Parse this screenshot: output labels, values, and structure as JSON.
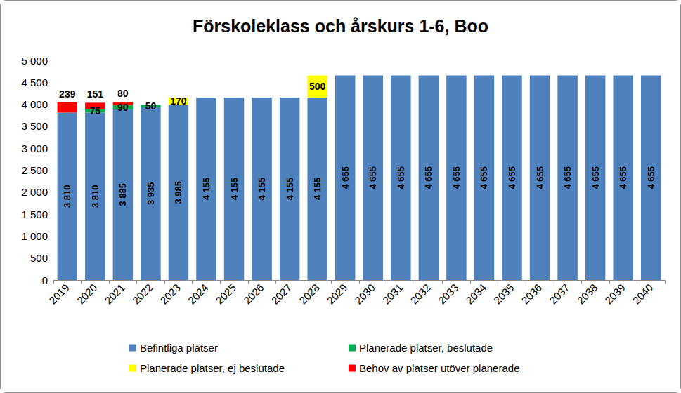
{
  "chart_data": {
    "type": "bar",
    "title": "Förskoleklass och årskurs 1-6, Boo",
    "stacked": true,
    "data_labels": true,
    "grid": false,
    "legend": "bottom",
    "categories": [
      "2019",
      "2020",
      "2021",
      "2022",
      "2023",
      "2024",
      "2025",
      "2026",
      "2027",
      "2028",
      "2029",
      "2030",
      "2031",
      "2032",
      "2033",
      "2034",
      "2035",
      "2036",
      "2037",
      "2038",
      "2039",
      "2040"
    ],
    "ylim": [
      0,
      5000
    ],
    "yticks": [
      0,
      500,
      {
        "value": 1000,
        "label": "1 000"
      },
      {
        "value": 1500,
        "label": "1 500"
      },
      {
        "value": 2000,
        "label": "2 000"
      },
      {
        "value": 2500,
        "label": "2 500"
      },
      {
        "value": 3000,
        "label": "3 000"
      },
      {
        "value": 3500,
        "label": "3 500"
      },
      {
        "value": 4000,
        "label": "4 000"
      },
      {
        "value": 4500,
        "label": "4 500"
      },
      {
        "value": 5000,
        "label": "5 000"
      }
    ],
    "series": [
      {
        "name": "Befintliga platser",
        "color": "#4f81bd",
        "values": [
          3810,
          3810,
          3885,
          3935,
          3985,
          4155,
          4155,
          4155,
          4155,
          4155,
          4655,
          4655,
          4655,
          4655,
          4655,
          4655,
          4655,
          4655,
          4655,
          4655,
          4655,
          4655
        ],
        "value_labels": [
          "3 810",
          "3 810",
          "3 885",
          "3 935",
          "3 985",
          "4 155",
          "4 155",
          "4 155",
          "4 155",
          "4 155",
          "4 655",
          "4 655",
          "4 655",
          "4 655",
          "4 655",
          "4 655",
          "4 655",
          "4 655",
          "4 655",
          "4 655",
          "4 655",
          "4 655"
        ]
      },
      {
        "name": "Planerade platser, beslutade",
        "color": "#00b050",
        "values": [
          null,
          75,
          90,
          50,
          null,
          null,
          null,
          null,
          null,
          null,
          null,
          null,
          null,
          null,
          null,
          null,
          null,
          null,
          null,
          null,
          null,
          null
        ]
      },
      {
        "name": "Planerade platser, ej beslutade",
        "color": "#ffff00",
        "values": [
          null,
          null,
          null,
          null,
          170,
          null,
          null,
          null,
          null,
          500,
          null,
          null,
          null,
          null,
          null,
          null,
          null,
          null,
          null,
          null,
          null,
          null
        ]
      },
      {
        "name": "Behov av platser utöver planerade",
        "color": "#ff0000",
        "values": [
          239,
          151,
          80,
          null,
          null,
          null,
          null,
          null,
          null,
          null,
          null,
          null,
          null,
          null,
          null,
          null,
          null,
          null,
          null,
          null,
          null,
          null
        ]
      }
    ]
  }
}
